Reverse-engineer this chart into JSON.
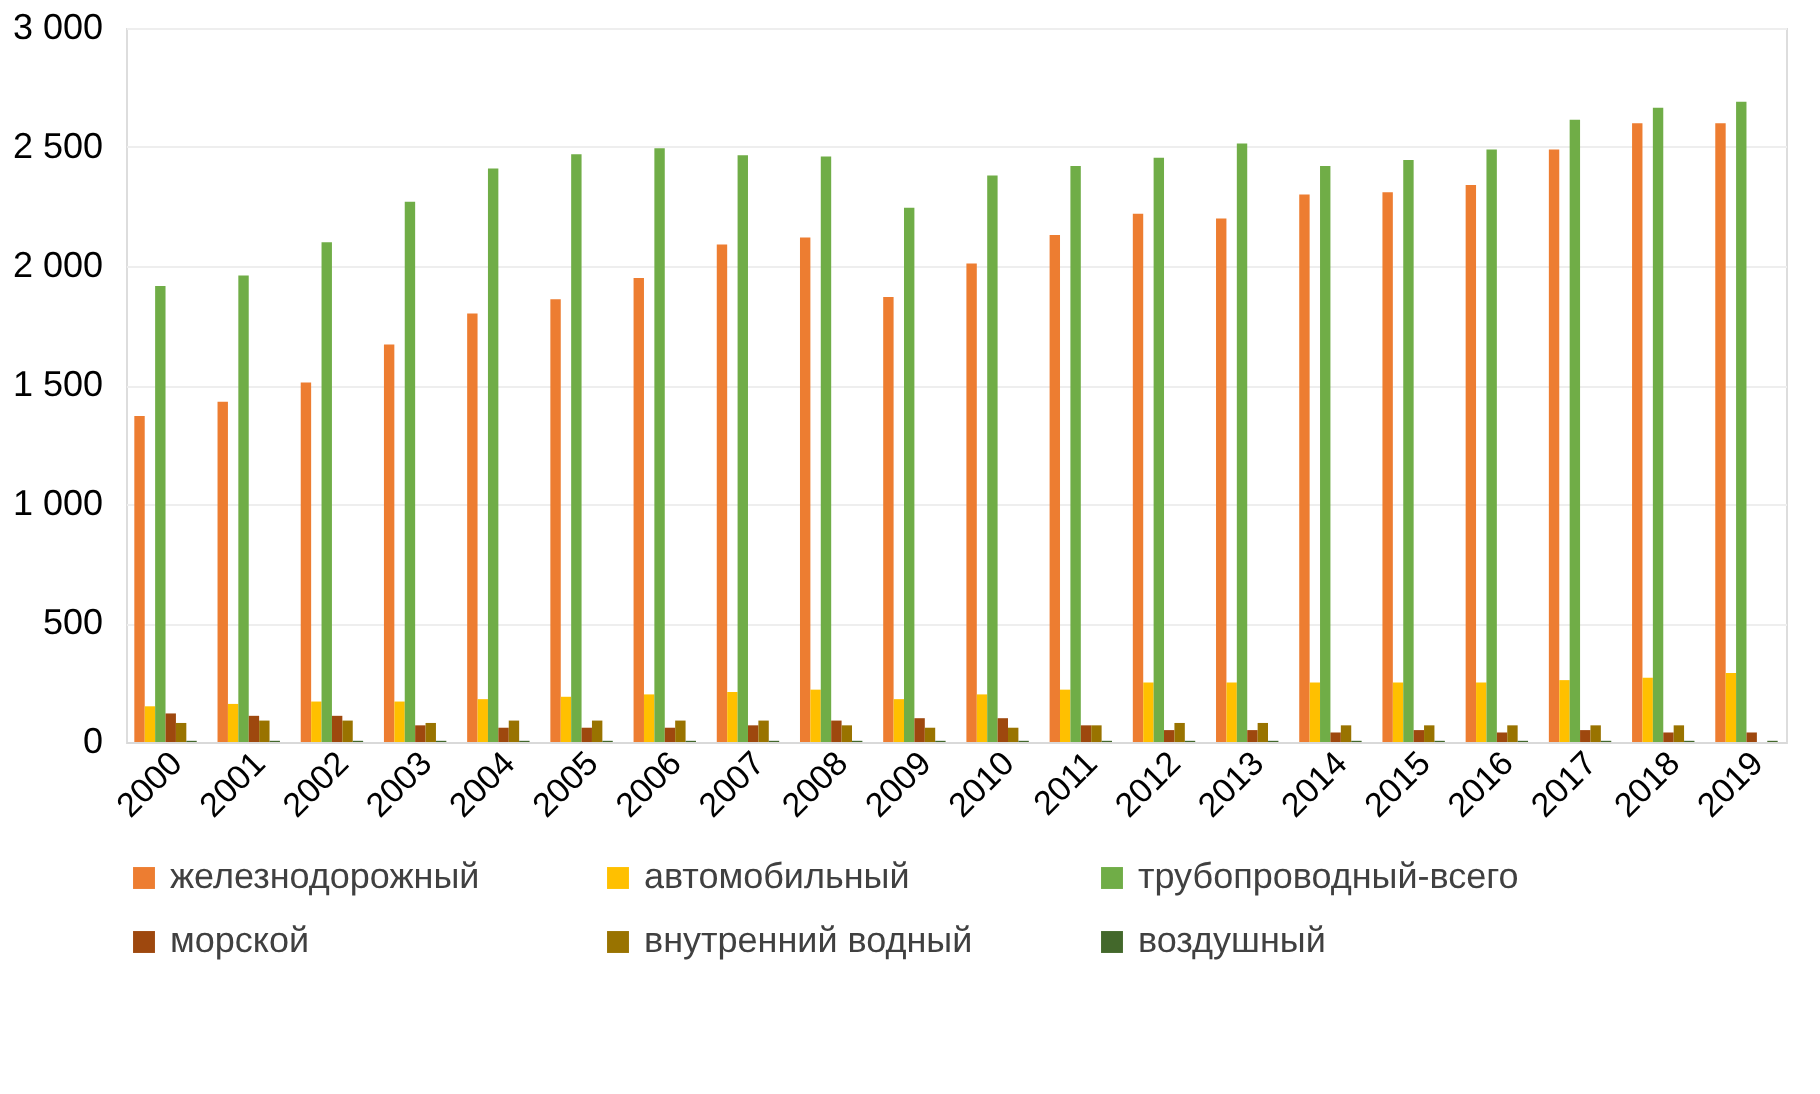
{
  "chart_data": {
    "type": "bar",
    "categories": [
      "2000",
      "2001",
      "2002",
      "2003",
      "2004",
      "2005",
      "2006",
      "2007",
      "2008",
      "2009",
      "2010",
      "2011",
      "2012",
      "2013",
      "2014",
      "2015",
      "2016",
      "2017",
      "2018",
      "2019"
    ],
    "series": [
      {
        "name": "железнодорожный",
        "color": "#ed7d31",
        "values": [
          1370,
          1430,
          1510,
          1670,
          1800,
          1860,
          1950,
          2090,
          2120,
          1870,
          2010,
          2130,
          2220,
          2200,
          2300,
          2310,
          2340,
          2490,
          2600,
          2600
        ]
      },
      {
        "name": "автомобильный",
        "color": "#ffc000",
        "values": [
          150,
          160,
          170,
          170,
          180,
          190,
          200,
          210,
          220,
          180,
          200,
          220,
          250,
          250,
          250,
          250,
          250,
          260,
          270,
          290
        ]
      },
      {
        "name": "трубопроводный-всего",
        "color": "#70ad47",
        "values": [
          1916,
          1960,
          2100,
          2270,
          2410,
          2470,
          2495,
          2465,
          2460,
          2245,
          2380,
          2420,
          2455,
          2515,
          2420,
          2445,
          2490,
          2615,
          2665,
          2690
        ]
      },
      {
        "name": "морской",
        "color": "#9e480e",
        "values": [
          120,
          110,
          110,
          70,
          60,
          60,
          60,
          70,
          90,
          100,
          100,
          70,
          50,
          50,
          40,
          50,
          40,
          50,
          40,
          40
        ]
      },
      {
        "name": "внутренний водный",
        "color": "#997300",
        "values": [
          80,
          90,
          90,
          80,
          90,
          90,
          90,
          90,
          70,
          60,
          60,
          70,
          80,
          80,
          70,
          70,
          70,
          70,
          70,
          null
        ]
      },
      {
        "name": "воздушный",
        "color": "#43682b",
        "values": [
          5,
          5,
          5,
          5,
          5,
          5,
          5,
          5,
          5,
          5,
          5,
          5,
          5,
          5,
          5,
          5,
          5,
          5,
          5,
          5
        ]
      }
    ],
    "ylim": [
      0,
      3000
    ],
    "yticks": [
      {
        "value": 0,
        "label": "0"
      },
      {
        "value": 500,
        "label": "500"
      },
      {
        "value": 1000,
        "label": "1 000"
      },
      {
        "value": 1500,
        "label": "1 500"
      },
      {
        "value": 2000,
        "label": "2 000"
      },
      {
        "value": 2500,
        "label": "2 500"
      },
      {
        "value": 3000,
        "label": "3 000"
      }
    ],
    "grid": "y",
    "legend": "bottom"
  }
}
